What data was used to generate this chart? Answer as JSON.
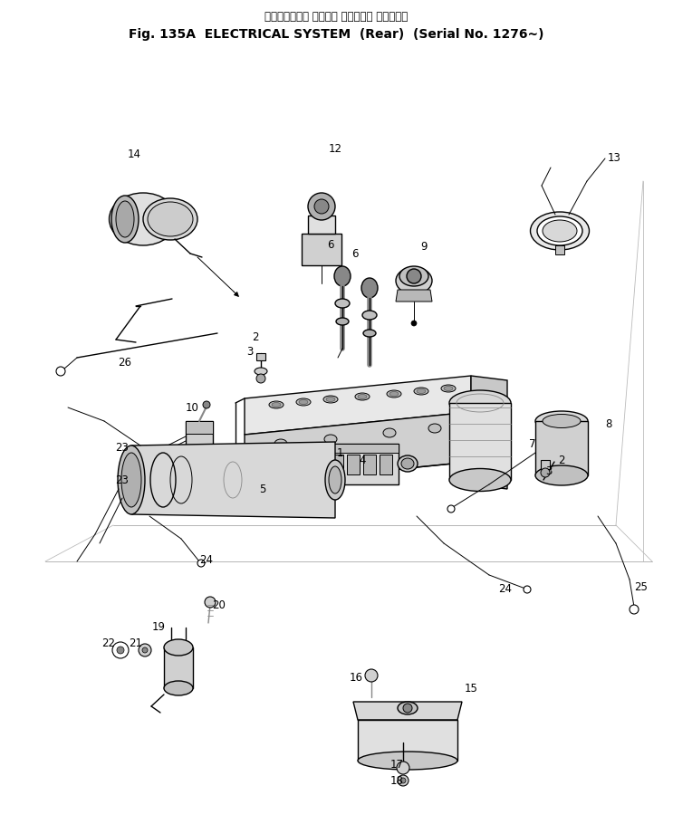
{
  "title_line1": "エレクトリカル システム （リヤー） （適用号機",
  "title_line2": "Fig. 135A  ELECTRICAL SYSTEM  (Rear)  (Serial No. 1276~)",
  "bg_color": "#ffffff",
  "fig_width": 7.43,
  "fig_height": 9.1,
  "dpi": 100
}
